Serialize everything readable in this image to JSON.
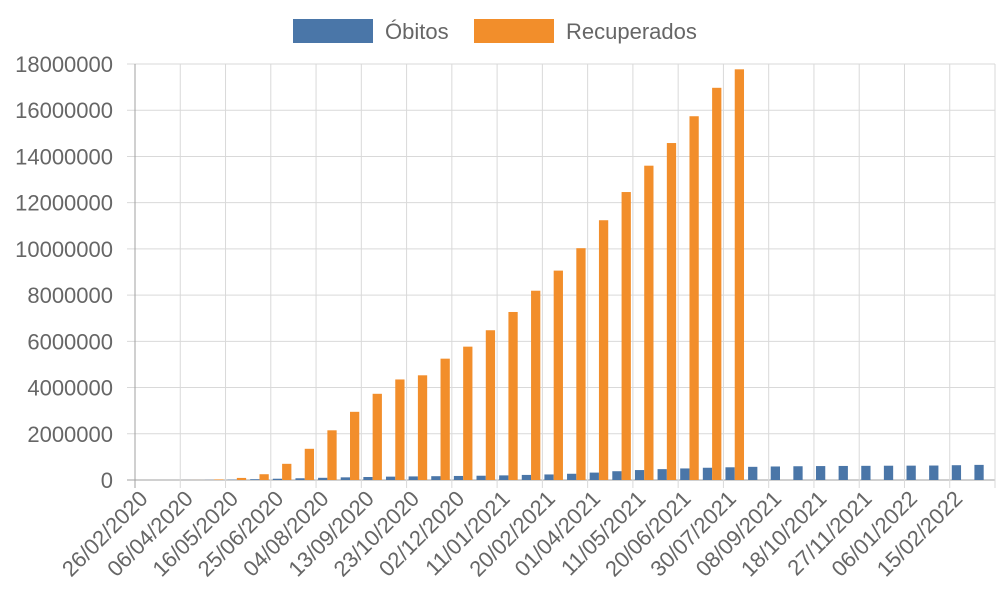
{
  "chart_data": {
    "type": "bar",
    "title": "",
    "xlabel": "",
    "ylabel": "",
    "ylim": [
      0,
      18000000
    ],
    "y_ticks": [
      "0",
      "2000000",
      "4000000",
      "6000000",
      "8000000",
      "10000000",
      "12000000",
      "14000000",
      "16000000",
      "18000000"
    ],
    "x_tick_labels": [
      "26/02/2020",
      "06/04/2020",
      "16/05/2020",
      "25/06/2020",
      "04/08/2020",
      "13/09/2020",
      "23/10/2020",
      "02/12/2020",
      "11/01/2021",
      "20/02/2021",
      "01/04/2021",
      "11/05/2021",
      "20/06/2021",
      "30/07/2021",
      "08/09/2021",
      "18/10/2021",
      "27/11/2021",
      "06/01/2022",
      "15/02/2022"
    ],
    "legend_position": "top",
    "grid": true,
    "categories": [
      "26/02/2020",
      "16/03/2020",
      "06/04/2020",
      "26/04/2020",
      "16/05/2020",
      "05/06/2020",
      "25/06/2020",
      "15/07/2020",
      "04/08/2020",
      "24/08/2020",
      "13/09/2020",
      "03/10/2020",
      "23/10/2020",
      "12/11/2020",
      "02/12/2020",
      "22/12/2020",
      "11/01/2021",
      "31/01/2021",
      "20/02/2021",
      "12/03/2021",
      "01/04/2021",
      "21/04/2021",
      "11/05/2021",
      "31/05/2021",
      "20/06/2021",
      "10/07/2021",
      "30/07/2021",
      "19/08/2021",
      "08/09/2021",
      "28/09/2021",
      "18/10/2021",
      "07/11/2021",
      "27/11/2021",
      "17/12/2021",
      "06/01/2022",
      "26/01/2022",
      "15/02/2022",
      "07/03/2022"
    ],
    "series": [
      {
        "name": "Óbitos",
        "color": "#4a76a8",
        "values": [
          0,
          0,
          500,
          5000,
          15000,
          35000,
          55000,
          75000,
          95000,
          115000,
          130000,
          145000,
          155000,
          165000,
          175000,
          185000,
          200000,
          220000,
          240000,
          270000,
          320000,
          380000,
          430000,
          470000,
          500000,
          530000,
          550000,
          570000,
          585000,
          595000,
          603000,
          608000,
          613000,
          618000,
          621000,
          626000,
          640000,
          654000
        ]
      },
      {
        "name": "Recuperados",
        "color": "#f28e2b",
        "values": [
          0,
          0,
          2000,
          25000,
          90000,
          250000,
          700000,
          1350000,
          2150000,
          2950000,
          3730000,
          4350000,
          4530000,
          5250000,
          5770000,
          6480000,
          7270000,
          8190000,
          9060000,
          10030000,
          11240000,
          12460000,
          13600000,
          14580000,
          15740000,
          16970000,
          17770000,
          null,
          null,
          null,
          null,
          null,
          null,
          null,
          null,
          null,
          null,
          null
        ]
      }
    ]
  }
}
